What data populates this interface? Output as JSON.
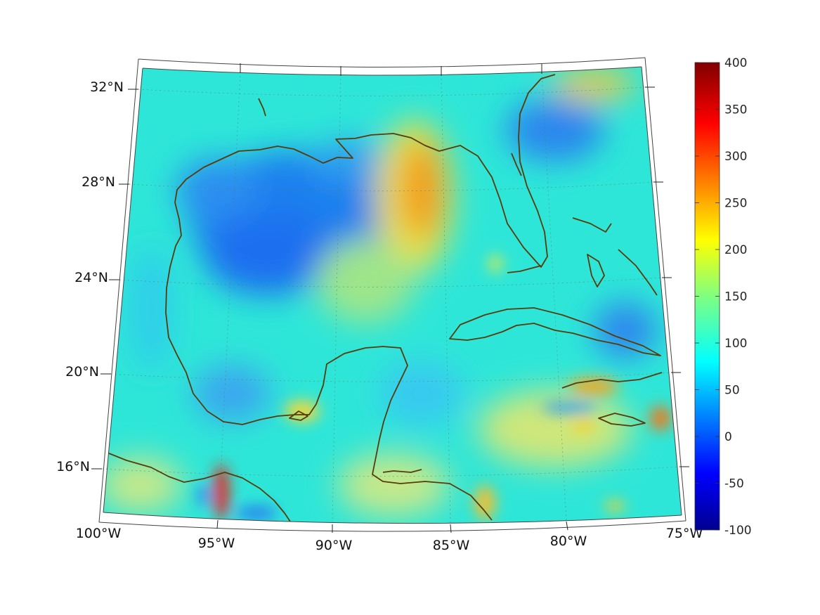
{
  "map": {
    "type": "heatmap",
    "projection": "conic",
    "coastline_color": "#5a3a0a",
    "grid": true,
    "lat_labels": [
      "32°N",
      "28°N",
      "24°N",
      "20°N",
      "16°N"
    ],
    "lon_labels": [
      "100°W",
      "95°W",
      "90°W",
      "85°W",
      "80°W",
      "75°W"
    ],
    "lat_range": [
      14,
      33
    ],
    "lon_range": [
      -100,
      -75
    ]
  },
  "colorbar": {
    "colormap": "jet",
    "min": -100,
    "max": 400,
    "tick_labels": [
      "400",
      "350",
      "300",
      "250",
      "200",
      "150",
      "100",
      "50",
      "0",
      "-50",
      "-100"
    ],
    "legend_placement": "right"
  }
}
